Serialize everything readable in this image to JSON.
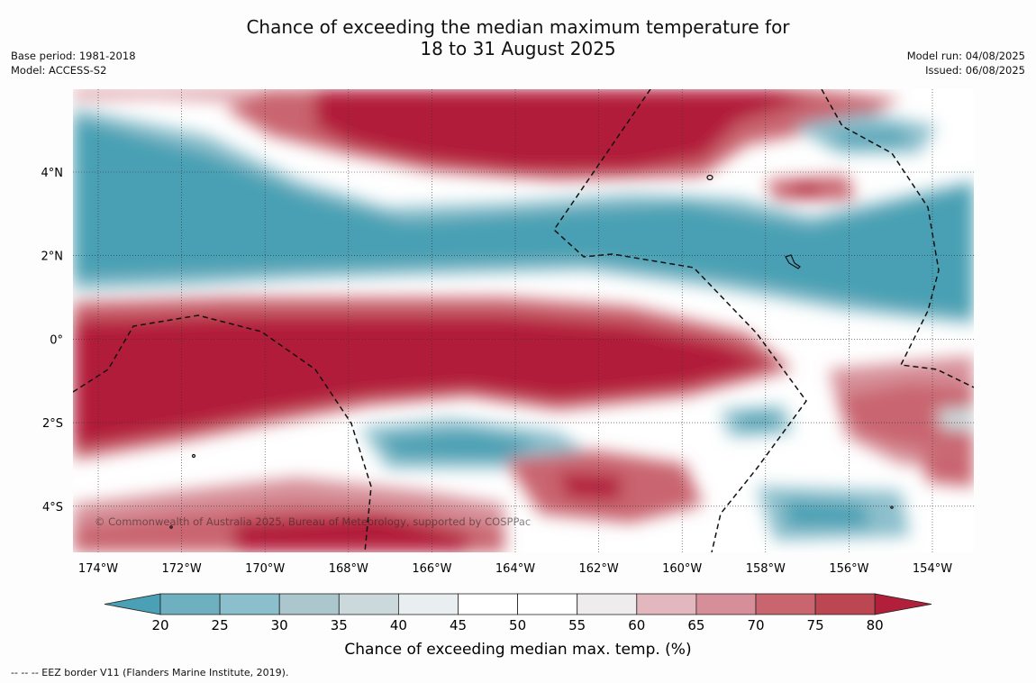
{
  "title_line1": "Chance of exceeding the median maximum temperature for",
  "title_line2": "18 to 31 August 2025",
  "meta_left": {
    "base_period": "Base period: 1981-2018",
    "model": "Model: ACCESS-S2"
  },
  "meta_right": {
    "model_run": "Model run: 04/08/2025",
    "issued": "Issued: 06/08/2025"
  },
  "copyright": "© Commonwealth of Australia 2025, Bureau of Meteorology, supported by COSPPac",
  "lon_ticks": [
    "174°W",
    "172°W",
    "170°W",
    "168°W",
    "166°W",
    "164°W",
    "162°W",
    "160°W",
    "158°W",
    "156°W",
    "154°W"
  ],
  "lat_ticks": [
    "4°N",
    "2°N",
    "0°",
    "2°S",
    "4°S"
  ],
  "colorbar": {
    "label": "Chance of exceeding median max. temp. (%)",
    "ticks": [
      "20",
      "25",
      "30",
      "35",
      "40",
      "45",
      "50",
      "55",
      "60",
      "65",
      "70",
      "75",
      "80"
    ],
    "colors": [
      "#4aa0b4",
      "#6eb0c0",
      "#8cbfcc",
      "#abc6cc",
      "#cbd9dc",
      "#e9eff1",
      "#ffffff",
      "#ffffff",
      "#eeeced",
      "#e2b7bd",
      "#d68f98",
      "#c9656f",
      "#bc4752",
      "#b21f3a"
    ]
  },
  "footer": "--  --  -- EEZ border V11 (Flanders Marine Institute, 2019)."
}
